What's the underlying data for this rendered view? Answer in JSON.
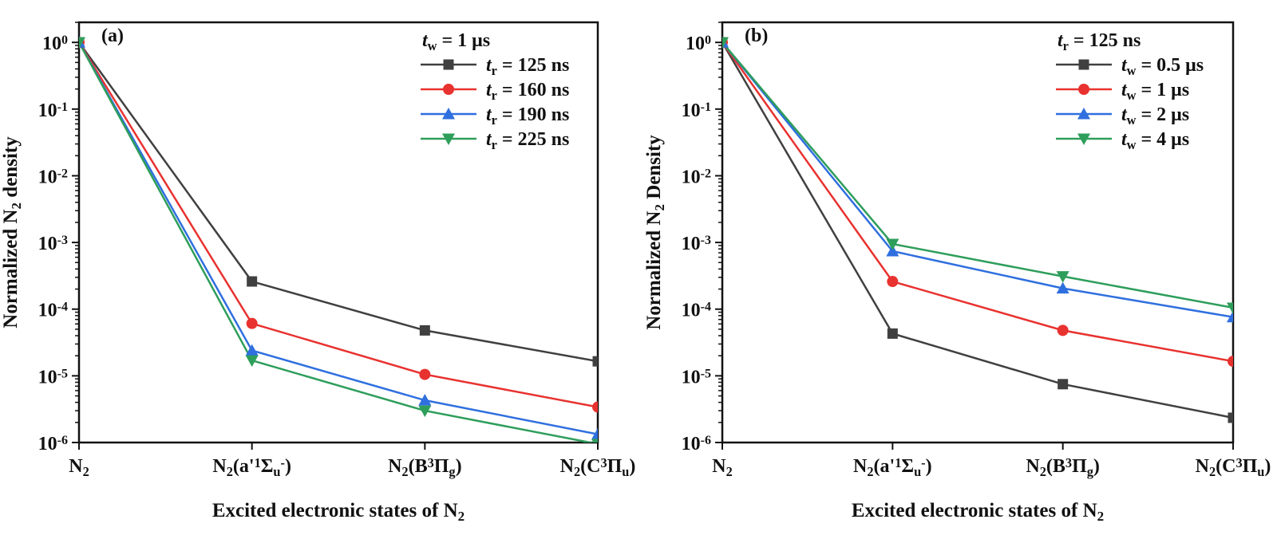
{
  "chart_data": [
    {
      "type": "line",
      "panel_label": "(a)",
      "xlabel": "Excited electronic states of  N2",
      "ylabel": "Normalized N2 density",
      "y_scale": "log",
      "ylim": [
        1e-06,
        2.0
      ],
      "categories": [
        "N2",
        "N2(a'1Σu-)",
        "N2(B3Πg)",
        "N2(C3Πu)"
      ],
      "legend_title": "tw = 1 μs",
      "legend_position": "top-right",
      "series": [
        {
          "name": "tr = 125 ns",
          "color": "#404040",
          "marker": "square",
          "values": [
            1.0,
            0.00026,
            4.8e-05,
            1.65e-05
          ]
        },
        {
          "name": "tr = 160 ns",
          "color": "#e8322f",
          "marker": "circle",
          "values": [
            1.0,
            6.1e-05,
            1.05e-05,
            3.4e-06
          ]
        },
        {
          "name": "tr = 190 ns",
          "color": "#2f6fdf",
          "marker": "triangle-up",
          "values": [
            1.0,
            2.4e-05,
            4.3e-06,
            1.33e-06
          ]
        },
        {
          "name": "tr = 225 ns",
          "color": "#2e9e5b",
          "marker": "triangle-down",
          "values": [
            1.0,
            1.7e-05,
            3e-06,
            9.5e-07
          ]
        }
      ]
    },
    {
      "type": "line",
      "panel_label": "(b)",
      "xlabel": "Excited electronic states of  N2",
      "ylabel": "Normalized N2 Density",
      "y_scale": "log",
      "ylim": [
        1e-06,
        2.0
      ],
      "categories": [
        "N2",
        "N2(a'1Σu-)",
        "N2(B3Πg)",
        "N2(C3Πu)"
      ],
      "legend_title": "tr = 125 ns",
      "legend_position": "top-right",
      "series": [
        {
          "name": "tw = 0.5 μs",
          "color": "#404040",
          "marker": "square",
          "values": [
            1.0,
            4.3e-05,
            7.5e-06,
            2.35e-06
          ]
        },
        {
          "name": "tw = 1 μs",
          "color": "#e8322f",
          "marker": "circle",
          "values": [
            1.0,
            0.00026,
            4.8e-05,
            1.65e-05
          ]
        },
        {
          "name": "tw = 2 μs",
          "color": "#2f6fdf",
          "marker": "triangle-up",
          "values": [
            1.0,
            0.00074,
            0.000205,
            7.6e-05
          ]
        },
        {
          "name": "tw = 4 μs",
          "color": "#2e9e5b",
          "marker": "triangle-down",
          "values": [
            1.0,
            0.00095,
            0.00031,
            0.000105
          ]
        }
      ]
    }
  ]
}
